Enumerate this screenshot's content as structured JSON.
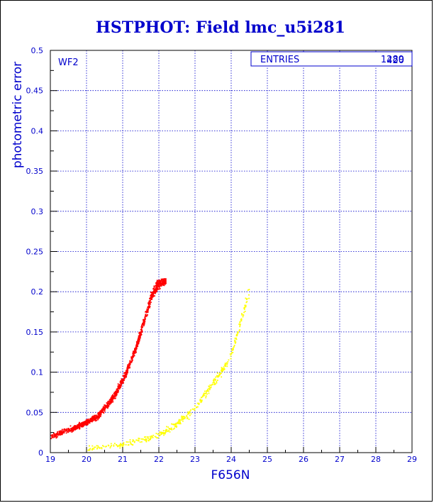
{
  "chart_data": {
    "type": "scatter",
    "title": "HSTPHOT: Field lmc_u5i281",
    "xlabel": "F656N",
    "ylabel": "photometric error",
    "xlim": [
      19,
      29
    ],
    "ylim": [
      0,
      0.5
    ],
    "x_ticks": [
      "19",
      "20",
      "21",
      "22",
      "23",
      "24",
      "25",
      "26",
      "27",
      "28",
      "29"
    ],
    "y_ticks": [
      "0",
      "0.05",
      "0.1",
      "0.15",
      "0.2",
      "0.25",
      "0.3",
      "0.35",
      "0.4",
      "0.45",
      "0.5"
    ],
    "grid": true,
    "panel_label": "WF2",
    "stats_box": {
      "label": "ENTRIES",
      "value_a": "1289",
      "value_b": "420"
    },
    "colors": {
      "text": "#0000cc",
      "grid": "#0000cc",
      "red_series": "#ff0000",
      "yellow_series": "#ffff00"
    },
    "series": [
      {
        "color": "red",
        "count": 1289,
        "trend": [
          [
            19.0,
            0.02
          ],
          [
            19.5,
            0.028
          ],
          [
            20.0,
            0.037
          ],
          [
            20.3,
            0.045
          ],
          [
            20.6,
            0.06
          ],
          [
            20.8,
            0.072
          ],
          [
            21.0,
            0.09
          ],
          [
            21.2,
            0.11
          ],
          [
            21.4,
            0.135
          ],
          [
            21.6,
            0.165
          ],
          [
            21.8,
            0.195
          ],
          [
            22.0,
            0.21
          ],
          [
            22.2,
            0.215
          ]
        ]
      },
      {
        "color": "yellow",
        "count": 420,
        "trend": [
          [
            20.0,
            0.005
          ],
          [
            20.5,
            0.007
          ],
          [
            21.0,
            0.01
          ],
          [
            21.5,
            0.015
          ],
          [
            22.0,
            0.022
          ],
          [
            22.5,
            0.035
          ],
          [
            23.0,
            0.055
          ],
          [
            23.5,
            0.085
          ],
          [
            24.0,
            0.12
          ],
          [
            24.5,
            0.2
          ]
        ]
      }
    ]
  }
}
